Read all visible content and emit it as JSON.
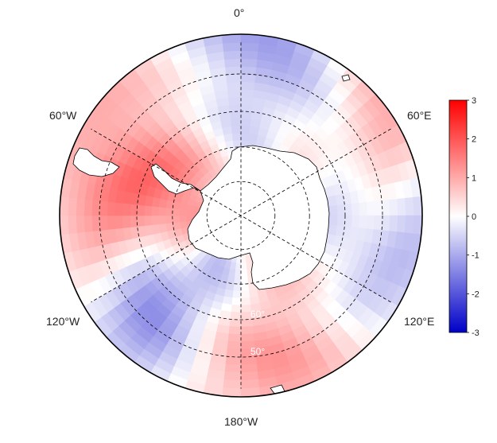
{
  "map": {
    "projection": "south-polar-stereographic",
    "colormap": [
      "#0000c8",
      "#ffffff",
      "#ff0000"
    ],
    "coastline_color": "#000000",
    "graticule_style": "dashed",
    "lon_labels": {
      "top": "0°",
      "upper_left": "60°W",
      "upper_right": "60°E",
      "lower_left": "120°W",
      "lower_right": "120°E",
      "bottom": "180°W"
    },
    "lat_labels": {
      "inner": "60°",
      "outer": "50°"
    }
  },
  "colorbar": {
    "min": -3,
    "max": 3,
    "ticks": [
      "3",
      "2",
      "1",
      "0",
      "-1",
      "-2",
      "-3"
    ]
  },
  "anomaly_field": {
    "description_of_pattern": [
      {
        "lon": -90,
        "lat": -65,
        "value": 2.6
      },
      {
        "lon": -70,
        "lat": -60,
        "value": 2.0
      },
      {
        "lon": -40,
        "lat": -55,
        "value": 1.2
      },
      {
        "lon": -150,
        "lat": -62,
        "value": -2.3
      },
      {
        "lon": -125,
        "lat": -55,
        "value": -1.8
      },
      {
        "lon": 10,
        "lat": -48,
        "value": -1.4
      },
      {
        "lon": 20,
        "lat": -45,
        "value": -1.6
      },
      {
        "lon": 170,
        "lat": -58,
        "value": 1.6
      },
      {
        "lon": 150,
        "lat": -52,
        "value": 1.4
      },
      {
        "lon": -175,
        "lat": -48,
        "value": 1.2
      },
      {
        "lon": 100,
        "lat": -58,
        "value": -1.0
      },
      {
        "lon": 60,
        "lat": -60,
        "value": 0.6
      },
      {
        "lon": 0,
        "lat": -70,
        "value": -0.3
      },
      {
        "lon": -10,
        "lat": -42,
        "value": -0.6
      },
      {
        "lon": 40,
        "lat": -42,
        "value": 1.6
      },
      {
        "lon": -100,
        "lat": -48,
        "value": 1.0
      },
      {
        "lon": 130,
        "lat": -45,
        "value": -0.8
      }
    ]
  }
}
